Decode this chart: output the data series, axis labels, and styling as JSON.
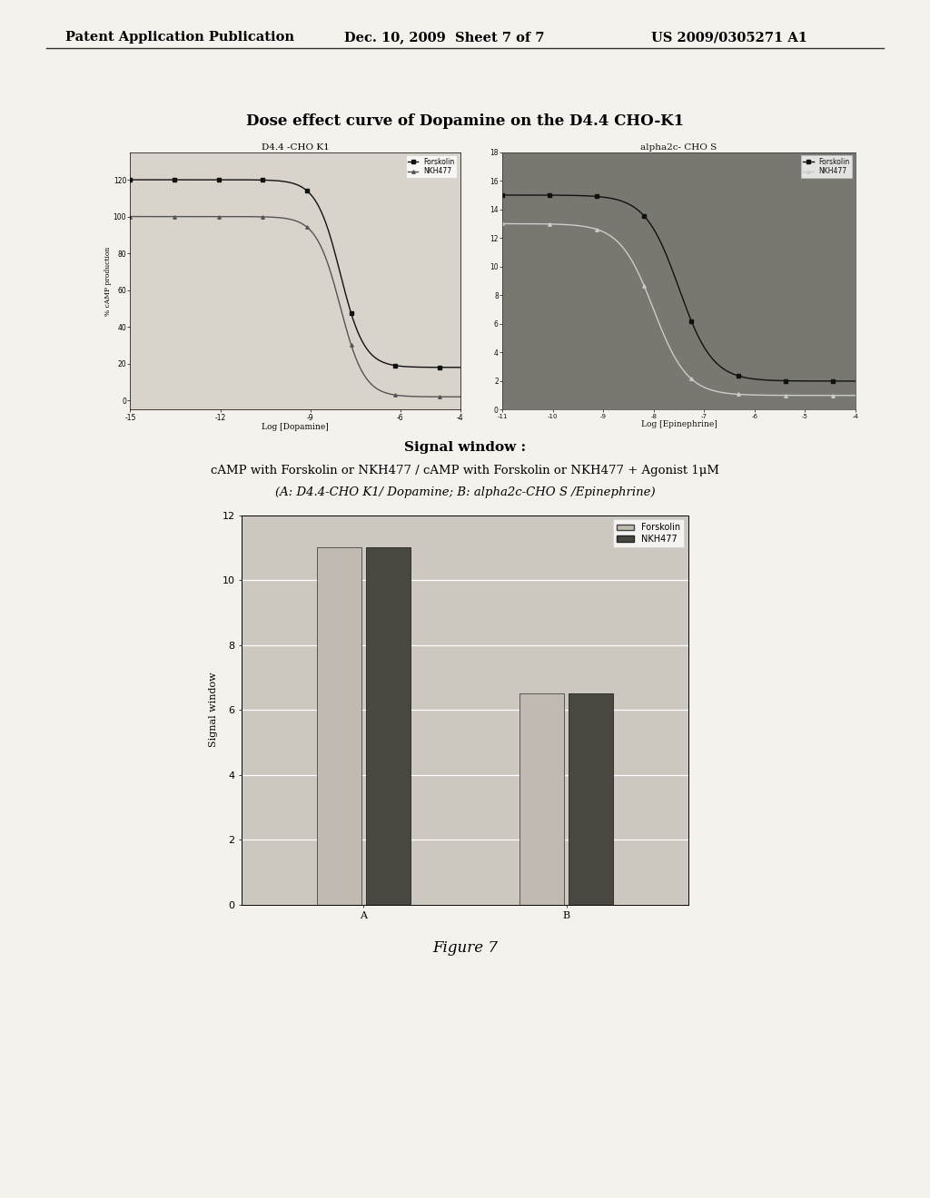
{
  "header_left": "Patent Application Publication",
  "header_mid": "Dec. 10, 2009  Sheet 7 of 7",
  "header_right": "US 2009/0305271 A1",
  "main_title": "Dose effect curve of Dopamine on the D4.4 CHO-K1",
  "subplot1_title": "D4.4 -CHO K1",
  "subplot1_xlabel": "Log [Dopamine]",
  "subplot1_ylabel": "% cAMP production",
  "subplot1_legend": [
    "Forskolin",
    "NKH477"
  ],
  "subplot2_title": "alpha2c- CHO S",
  "subplot2_xlabel": "Log [Epinephrine]",
  "subplot2_legend": [
    "Forskolin",
    "NKH477"
  ],
  "bar_title_line1": "Signal window :",
  "bar_title_line2": "cAMP with Forskolin or NKH477 / cAMP with Forskolin or NKH477 + Agonist 1μM",
  "bar_title_line3": "(A: D4.4-CHO K1/ Dopamine; B: alpha2c-CHO S /Epinephrine)",
  "bar_categories": [
    "A",
    "B"
  ],
  "bar_forskolin": [
    11.0,
    6.5
  ],
  "bar_nkh477": [
    11.0,
    6.5
  ],
  "bar_ylabel": "Signal window",
  "bar_ylim": [
    0,
    12
  ],
  "bar_yticks": [
    0,
    2,
    4,
    6,
    8,
    10,
    12
  ],
  "figure_label": "Figure 7",
  "page_bg": "#f5f2ee",
  "plot1_bg": "#d8d4cc",
  "plot2_bg": "#787870",
  "bar_bg": "#ccc8c0",
  "bar_color_light": "#c0bab0",
  "bar_color_dark": "#484840"
}
